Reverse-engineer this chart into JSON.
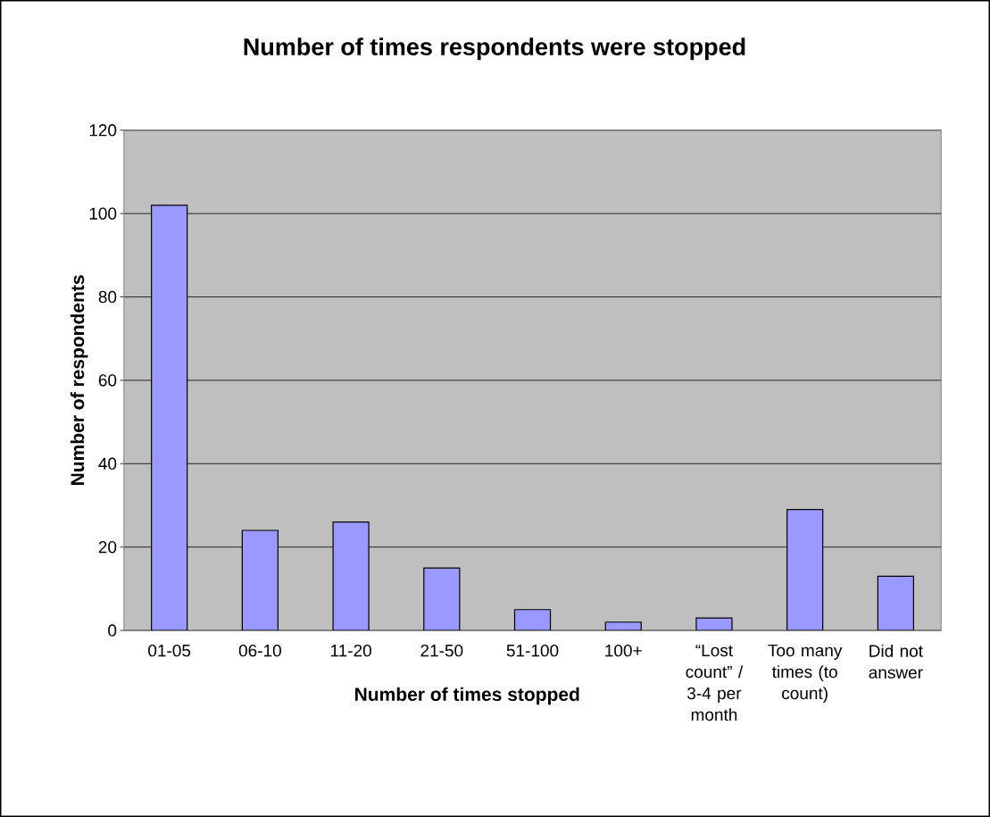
{
  "chart_data": {
    "type": "bar",
    "title": "Number of times respondents were stopped",
    "xlabel": "Number of times stopped",
    "ylabel": "Number of respondents",
    "categories": [
      "01-05",
      "06-10",
      "11-20",
      "21-50",
      "51-100",
      "100+",
      "“Lost count” / 3-4 per month",
      "Too many times (to count)",
      "Did not answer"
    ],
    "values": [
      102,
      24,
      26,
      15,
      5,
      2,
      3,
      29,
      13
    ],
    "color": "#9999ff",
    "ylim": [
      0,
      120
    ],
    "yticks": [
      0,
      20,
      40,
      60,
      80,
      100,
      120
    ],
    "grid": "y"
  }
}
